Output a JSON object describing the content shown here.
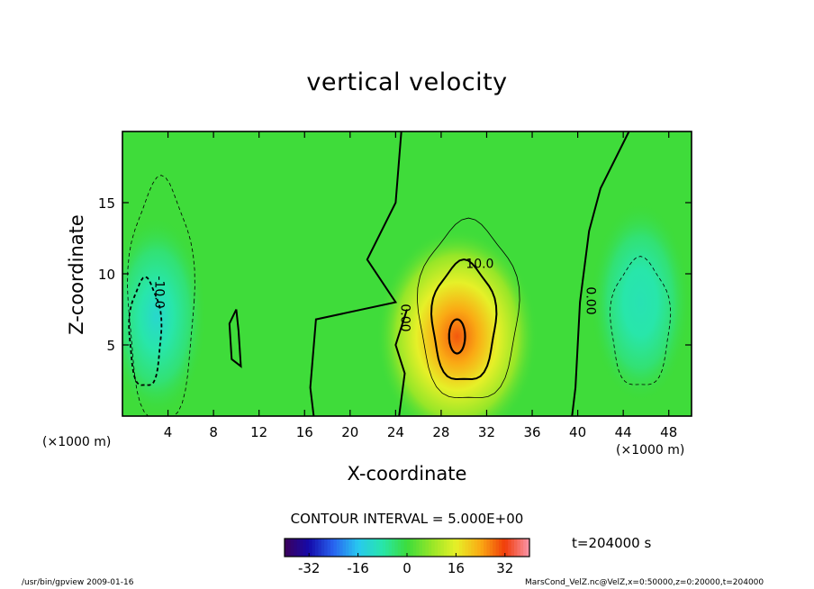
{
  "chart_data": {
    "type": "heatmap",
    "title": "vertical velocity",
    "xlabel": "X-coordinate",
    "ylabel": "Z-coordinate",
    "x_unit_left": "(×1000 m)",
    "x_unit_right": "(×1000 m)",
    "xlim": [
      0,
      50
    ],
    "ylim": [
      0,
      20
    ],
    "xticks": [
      4,
      8,
      12,
      16,
      20,
      24,
      28,
      32,
      36,
      40,
      44,
      48
    ],
    "yticks": [
      5,
      10,
      15
    ],
    "contour_interval_text": "CONTOUR INTERVAL = 5.000E+00",
    "contour_labels": [
      {
        "text": "10.0",
        "x": 31.4,
        "y": 10.4,
        "rotate": 0
      },
      {
        "text": "0.00",
        "x": 24.5,
        "y": 6.9,
        "rotate": 90
      },
      {
        "text": "0.00",
        "x": 40.8,
        "y": 8.1,
        "rotate": 90
      },
      {
        "text": "-10.0",
        "x": 2.9,
        "y": 8.7,
        "rotate": 90
      }
    ],
    "features": [
      {
        "kind": "updraft-core",
        "x": 29.4,
        "y": 5.6,
        "peak": 30
      },
      {
        "kind": "downdraft",
        "x": 3.0,
        "y": 7.0,
        "peak": -12
      },
      {
        "kind": "downdraft",
        "x": 45.5,
        "y": 8.0,
        "peak": -9
      }
    ],
    "colorbar": {
      "range": [
        -40,
        40
      ],
      "ticks": [
        -32,
        -16,
        0,
        16,
        32
      ]
    },
    "time_label": "t=204000 s",
    "colors": {
      "background_field": "#33dd44",
      "positive_peak": "#ff5a00",
      "negative_peak": "#20e0c0"
    }
  },
  "footer": {
    "left": "/usr/bin/gpview   2009-01-16",
    "right": "MarsCond_VelZ.nc@VelZ,x=0:50000,z=0:20000,t=204000"
  }
}
